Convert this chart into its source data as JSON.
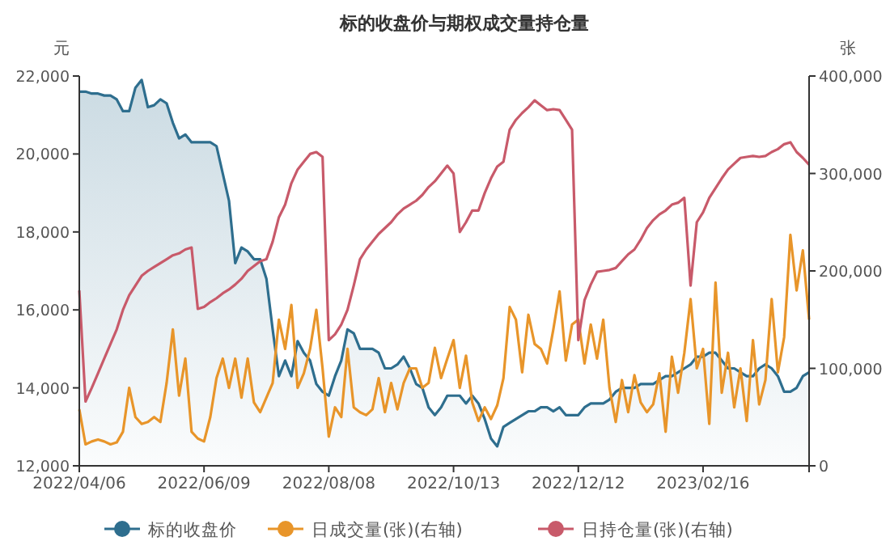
{
  "chart_data": {
    "type": "line",
    "title": "标的收盘价与期权成交量持仓量",
    "ylabel": "元",
    "y2label": "张",
    "categories": [
      "2022/04/06",
      null,
      null,
      null,
      null,
      null,
      null,
      null,
      null,
      null,
      null,
      null,
      null,
      null,
      null,
      null,
      null,
      null,
      null,
      null,
      "2022/06/09",
      null,
      null,
      null,
      null,
      null,
      null,
      null,
      null,
      null,
      null,
      null,
      null,
      null,
      null,
      null,
      null,
      null,
      null,
      null,
      "2022/08/08",
      null,
      null,
      null,
      null,
      null,
      null,
      null,
      null,
      null,
      null,
      null,
      null,
      null,
      null,
      null,
      null,
      null,
      null,
      null,
      "2022/10/13",
      null,
      null,
      null,
      null,
      null,
      null,
      null,
      null,
      null,
      null,
      null,
      null,
      null,
      null,
      null,
      null,
      null,
      null,
      null,
      "2022/12/12",
      null,
      null,
      null,
      null,
      null,
      null,
      null,
      null,
      null,
      null,
      null,
      null,
      null,
      null,
      null,
      null,
      null,
      null,
      null,
      "2023/02/16",
      null,
      null,
      null,
      null,
      null,
      null,
      null,
      null,
      null,
      null,
      null,
      null,
      null,
      null,
      null,
      null,
      null
    ],
    "ylim": [
      12000,
      22000
    ],
    "yticks": [
      {
        "value": 12000,
        "label": "12,000"
      },
      {
        "value": 14000,
        "label": "14,000"
      },
      {
        "value": 16000,
        "label": "16,000"
      },
      {
        "value": 18000,
        "label": "18,000"
      },
      {
        "value": 20000,
        "label": "20,000"
      },
      {
        "value": 22000,
        "label": "22,000"
      }
    ],
    "y2lim": [
      0,
      400000
    ],
    "y2ticks": [
      0,
      {
        "value": 100000,
        "label": "100,000"
      },
      {
        "value": 200000,
        "label": "200,000"
      },
      {
        "value": 300000,
        "label": "300,000"
      },
      {
        "value": 400000,
        "label": "400,000"
      }
    ],
    "grid": false,
    "legend": "bottom",
    "marker": "none",
    "line_style": "solid",
    "series": [
      {
        "name": "标的收盘价",
        "type": "area",
        "color": "#2e6e8e",
        "values": [
          21600,
          21600,
          21550,
          21550,
          21500,
          21500,
          21400,
          21100,
          21100,
          21700,
          21900,
          21200,
          21250,
          21400,
          21300,
          20800,
          20400,
          20500,
          20300,
          20300,
          20300,
          20300,
          20200,
          19500,
          18800,
          17200,
          17600,
          17500,
          17300,
          17300,
          16800,
          15500,
          14300,
          14700,
          14300,
          15200,
          14900,
          14700,
          14100,
          13900,
          13800,
          14300,
          14700,
          15500,
          15400,
          15000,
          15000,
          15000,
          14900,
          14500,
          14500,
          14600,
          14800,
          14500,
          14100,
          14000,
          13500,
          13300,
          13500,
          13800,
          13800,
          13800,
          13600,
          13800,
          13600,
          13200,
          12700,
          12500,
          13000,
          13100,
          13200,
          13300,
          13400,
          13400,
          13500,
          13500,
          13400,
          13500,
          13300,
          13300,
          13300,
          13500,
          13600,
          13600,
          13600,
          13700,
          13900,
          14000,
          14000,
          14000,
          14100,
          14100,
          14100,
          14200,
          14300,
          14300,
          14400,
          14500,
          14600,
          14800,
          14800,
          14900,
          14900,
          14700,
          14500,
          14500,
          14400,
          14300,
          14300,
          14500,
          14600,
          14500,
          14300,
          13900,
          13900,
          14000,
          14300,
          14400
        ]
      },
      {
        "name": "日成交量(张)(右轴)",
        "type": "line",
        "axis": "y2",
        "color": "#e8952a",
        "values": [
          58000,
          22000,
          25000,
          27000,
          25000,
          22000,
          24000,
          35000,
          80000,
          50000,
          43000,
          45000,
          50000,
          45000,
          85000,
          140000,
          72000,
          110000,
          35000,
          28000,
          25000,
          50000,
          90000,
          110000,
          80000,
          110000,
          70000,
          110000,
          65000,
          55000,
          70000,
          85000,
          150000,
          120000,
          165000,
          80000,
          95000,
          120000,
          160000,
          100000,
          30000,
          60000,
          50000,
          120000,
          60000,
          55000,
          52000,
          58000,
          90000,
          55000,
          85000,
          58000,
          85000,
          100000,
          100000,
          80000,
          85000,
          121000,
          90000,
          110000,
          129000,
          80000,
          113000,
          65000,
          46000,
          60000,
          48000,
          62000,
          90000,
          163000,
          150000,
          96000,
          155000,
          125000,
          120000,
          105000,
          140000,
          179000,
          108000,
          145000,
          150000,
          105000,
          145000,
          110000,
          150000,
          80000,
          45000,
          88000,
          55000,
          93000,
          65000,
          55000,
          63000,
          95000,
          35000,
          112000,
          75000,
          116000,
          171000,
          100000,
          120000,
          43000,
          188000,
          75000,
          116000,
          60000,
          100000,
          46000,
          129000,
          63000,
          88000,
          171000,
          96000,
          132000,
          237000,
          180000,
          221000,
          150000
        ]
      },
      {
        "name": "日持仓量(张)(右轴)",
        "type": "line",
        "axis": "y2",
        "color": "#c85a6a",
        "values": [
          180000,
          66000,
          80000,
          95000,
          110000,
          125000,
          140000,
          160000,
          175000,
          185000,
          195000,
          200000,
          204000,
          208000,
          212000,
          216000,
          218000,
          222000,
          224000,
          161000,
          163000,
          168000,
          172000,
          177000,
          181000,
          186000,
          192000,
          200000,
          205000,
          210000,
          212000,
          230000,
          255000,
          268000,
          290000,
          304000,
          312000,
          320000,
          322000,
          317000,
          129000,
          135000,
          145000,
          160000,
          185000,
          212000,
          222000,
          230000,
          238000,
          244000,
          250000,
          258000,
          264000,
          268000,
          272000,
          278000,
          286000,
          292000,
          300000,
          308000,
          300000,
          240000,
          250000,
          262000,
          262000,
          280000,
          295000,
          307000,
          312000,
          345000,
          355000,
          362000,
          368000,
          375000,
          370000,
          365000,
          366000,
          365000,
          355000,
          345000,
          129000,
          170000,
          186000,
          199000,
          200000,
          201000,
          203000,
          210000,
          217000,
          222000,
          232000,
          244000,
          252000,
          258000,
          262000,
          268000,
          270000,
          275000,
          185000,
          250000,
          260000,
          275000,
          285000,
          295000,
          304000,
          310000,
          316000,
          317000,
          318000,
          317000,
          318000,
          322000,
          325000,
          330000,
          332000,
          322000,
          316000,
          309000
        ]
      }
    ]
  }
}
